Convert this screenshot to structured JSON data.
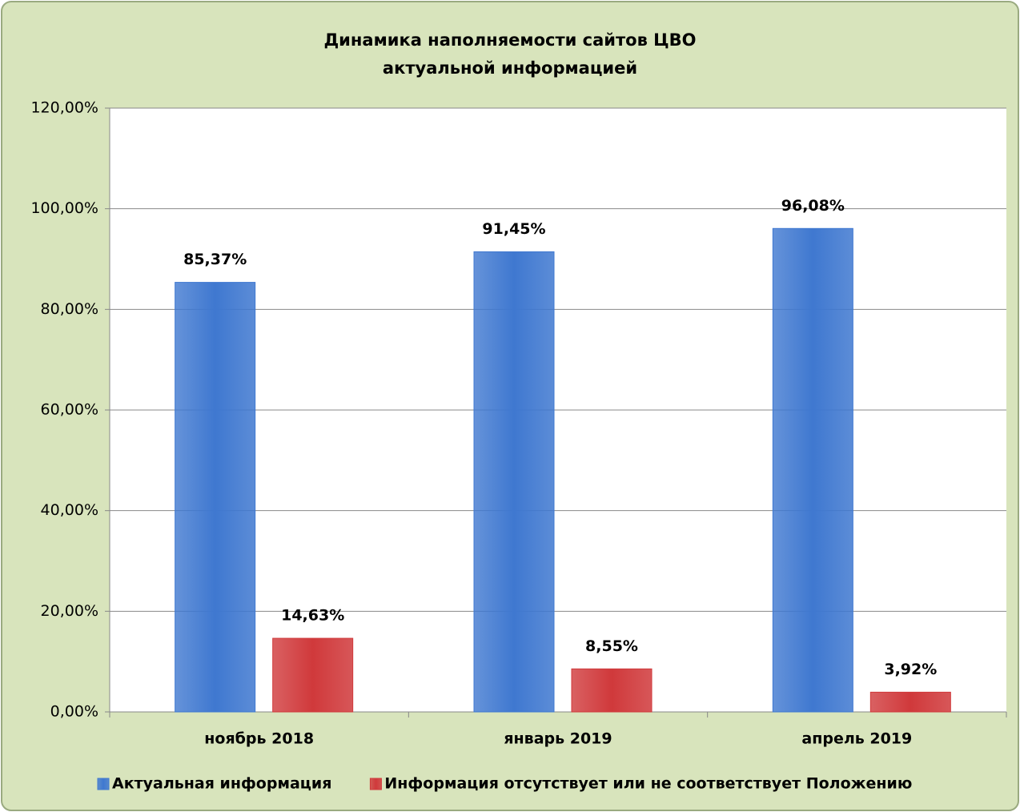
{
  "chart_data": {
    "type": "bar",
    "title": [
      "Динамика наполняемости сайтов ЦВО",
      "актуальной информацией"
    ],
    "categories": [
      "ноябрь 2018",
      "январь 2019",
      "апрель 2019"
    ],
    "series": [
      {
        "name": "Актуальная информация",
        "color": "#3f78d0",
        "values": [
          85.37,
          91.45,
          96.08
        ],
        "value_labels": [
          "85,37%",
          "91,45%",
          "96,08%"
        ]
      },
      {
        "name": "Информация отсутствует или не соответствует Положению",
        "color": "#d0393b",
        "values": [
          14.63,
          8.55,
          3.92
        ],
        "value_labels": [
          "14,63%",
          "8,55%",
          "3,92%"
        ]
      }
    ],
    "ylim": [
      0,
      120
    ],
    "yticks": [
      {
        "value": 0,
        "label": "0,00%"
      },
      {
        "value": 20,
        "label": "20,00%"
      },
      {
        "value": 40,
        "label": "40,00%"
      },
      {
        "value": 60,
        "label": "60,00%"
      },
      {
        "value": 80,
        "label": "80,00%"
      },
      {
        "value": 100,
        "label": "100,00%"
      },
      {
        "value": 120,
        "label": "120,00%"
      }
    ],
    "grid": true,
    "legend": "bottom"
  }
}
